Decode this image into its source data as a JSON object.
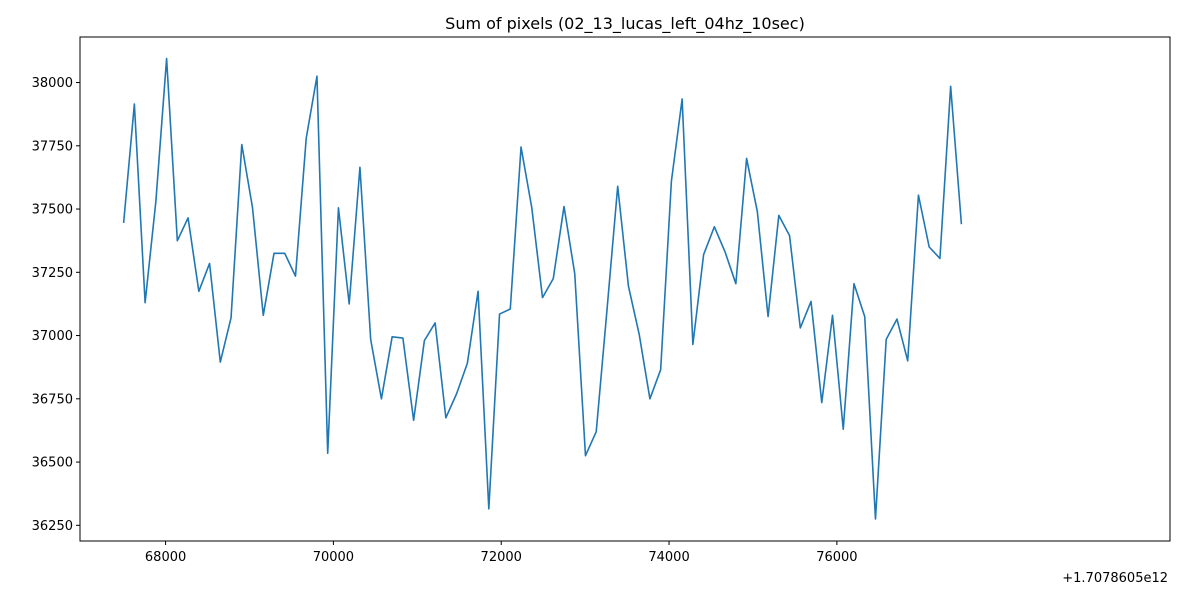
{
  "chart_data": {
    "type": "line",
    "title": "Sum of pixels (02_13_lucas_left_04hz_10sec)",
    "xlabel": "",
    "ylabel": "",
    "x_offset_label": "+1.7078605e12",
    "xlim": [
      66980,
      79970
    ],
    "ylim": [
      36188,
      38180
    ],
    "x_ticks": [
      68000,
      70000,
      72000,
      74000,
      76000
    ],
    "x_tick_labels": [
      "68000",
      "70000",
      "72000",
      "74000",
      "76000"
    ],
    "y_ticks": [
      36250,
      36500,
      36750,
      37000,
      37250,
      37500,
      37750,
      38000
    ],
    "y_tick_labels": [
      "36250",
      "36500",
      "36750",
      "37000",
      "37250",
      "37500",
      "37750",
      "38000"
    ],
    "grid": false,
    "line_color": "#1f77b4",
    "x": [
      67500,
      67628,
      67756,
      67884,
      68012,
      68140,
      68268,
      68396,
      68524,
      68652,
      68780,
      68908,
      69036,
      69164,
      69292,
      69420,
      69548,
      69676,
      69804,
      69932,
      70060,
      70188,
      70316,
      70444,
      70572,
      70700,
      70828,
      70956,
      71084,
      71212,
      71340,
      71468,
      71596,
      71724,
      71852,
      71980,
      72108,
      72236,
      72364,
      72492,
      72620,
      72748,
      72876,
      73004,
      73132,
      73260,
      73388,
      73516,
      73644,
      73772,
      73900,
      74028,
      74156,
      74284,
      74412,
      74540,
      74668,
      74796,
      74924,
      75052,
      75180,
      75308,
      75436,
      75564,
      75692,
      75820,
      75948,
      76076,
      76204,
      76332,
      76460,
      76588,
      76716,
      76844,
      76972,
      77100,
      77228,
      77356,
      77484
    ],
    "values": [
      37445,
      37915,
      37130,
      37530,
      38095,
      37375,
      37465,
      37175,
      37285,
      36895,
      37070,
      37755,
      37505,
      37080,
      37325,
      37325,
      37235,
      37780,
      38025,
      36535,
      37505,
      37125,
      37665,
      36985,
      36750,
      36995,
      36990,
      36665,
      36980,
      37050,
      36675,
      36770,
      36890,
      37175,
      36315,
      37085,
      37105,
      37745,
      37505,
      37150,
      37225,
      37510,
      37245,
      36525,
      36620,
      37100,
      37590,
      37195,
      37005,
      36750,
      36865,
      37610,
      37935,
      36965,
      37320,
      37430,
      37330,
      37205,
      37700,
      37490,
      37075,
      37475,
      37395,
      37030,
      37135,
      36735,
      37080,
      36630,
      37205,
      37075,
      36275,
      36985,
      37065,
      36900,
      37555,
      37350,
      37305,
      37985,
      37440
    ]
  }
}
